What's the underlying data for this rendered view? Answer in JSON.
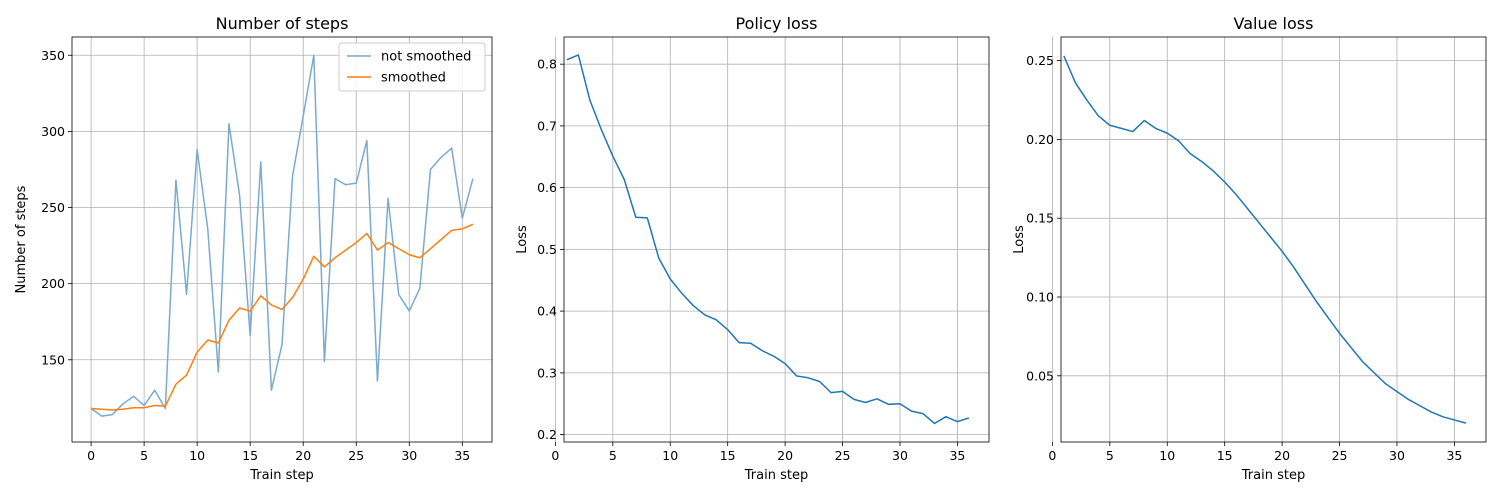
{
  "chart_data": [
    {
      "type": "line",
      "title": "Number of steps",
      "xlabel": "Train step",
      "ylabel": "Number of steps",
      "xlim": [
        -1.8,
        37.8
      ],
      "ylim": [
        96,
        362
      ],
      "xticks": [
        0,
        5,
        10,
        15,
        20,
        25,
        30,
        35
      ],
      "yticks": [
        150,
        200,
        250,
        300,
        350
      ],
      "grid": true,
      "legend": "top-right",
      "series": [
        {
          "name": "not smoothed",
          "color": "#7aaad0",
          "x": [
            0,
            1,
            2,
            3,
            4,
            5,
            6,
            7,
            8,
            9,
            10,
            11,
            12,
            13,
            14,
            15,
            16,
            17,
            18,
            19,
            20,
            21,
            22,
            23,
            24,
            25,
            26,
            27,
            28,
            29,
            30,
            31,
            32,
            33,
            34,
            35,
            36
          ],
          "values": [
            118,
            113,
            114,
            121,
            126,
            120,
            130,
            118,
            268,
            193,
            288,
            236,
            142,
            305,
            258,
            166,
            280,
            130,
            160,
            271,
            310,
            350,
            149,
            269,
            265,
            266,
            294,
            136,
            256,
            193,
            182,
            197,
            275,
            283,
            289,
            243,
            269
          ]
        },
        {
          "name": "smoothed",
          "color": "#ff7f0e",
          "x": [
            0,
            1,
            2,
            3,
            4,
            5,
            6,
            7,
            8,
            9,
            10,
            11,
            12,
            13,
            14,
            15,
            16,
            17,
            18,
            19,
            20,
            21,
            22,
            23,
            24,
            25,
            26,
            27,
            28,
            29,
            30,
            31,
            32,
            33,
            34,
            35,
            36
          ],
          "values": [
            118,
            117.5,
            117,
            117.5,
            118.5,
            118.5,
            120,
            119.5,
            134,
            140,
            155,
            163,
            161,
            176,
            184,
            182,
            192,
            186,
            183,
            191,
            203,
            218,
            211,
            217,
            222,
            227,
            233,
            222,
            227,
            223,
            219,
            217,
            223,
            229,
            235,
            236,
            239
          ]
        }
      ]
    },
    {
      "type": "line",
      "title": "Policy loss",
      "xlabel": "Train step",
      "ylabel": "Loss",
      "xlim": [
        0.75,
        37.75
      ],
      "ylim": [
        0.188,
        0.844
      ],
      "xticks": [
        0,
        5,
        10,
        15,
        20,
        25,
        30,
        35
      ],
      "yticks": [
        0.2,
        0.3,
        0.4,
        0.5,
        0.6,
        0.7,
        0.8
      ],
      "grid": true,
      "series": [
        {
          "color": "#1f77b4",
          "x": [
            1,
            2,
            3,
            4,
            5,
            6,
            7,
            8,
            9,
            10,
            11,
            12,
            13,
            14,
            15,
            16,
            17,
            18,
            19,
            20,
            21,
            22,
            23,
            24,
            25,
            26,
            27,
            28,
            29,
            30,
            31,
            32,
            33,
            34,
            35,
            36
          ],
          "values": [
            0.807,
            0.815,
            0.742,
            0.694,
            0.651,
            0.613,
            0.552,
            0.551,
            0.486,
            0.452,
            0.429,
            0.409,
            0.394,
            0.386,
            0.37,
            0.349,
            0.348,
            0.336,
            0.327,
            0.315,
            0.295,
            0.292,
            0.286,
            0.268,
            0.27,
            0.257,
            0.252,
            0.258,
            0.249,
            0.25,
            0.238,
            0.234,
            0.218,
            0.229,
            0.221,
            0.227
          ]
        }
      ]
    },
    {
      "type": "line",
      "title": "Value loss",
      "xlabel": "Train step",
      "ylabel": "Loss",
      "xlim": [
        0.75,
        37.75
      ],
      "ylim": [
        0.008,
        0.265
      ],
      "xticks": [
        0,
        5,
        10,
        15,
        20,
        25,
        30,
        35
      ],
      "yticks": [
        0.05,
        0.1,
        0.15,
        0.2,
        0.25
      ],
      "grid": true,
      "series": [
        {
          "color": "#1f77b4",
          "x": [
            1,
            2,
            3,
            4,
            5,
            6,
            7,
            8,
            9,
            10,
            11,
            12,
            13,
            14,
            15,
            16,
            17,
            18,
            19,
            20,
            21,
            22,
            23,
            24,
            25,
            26,
            27,
            28,
            29,
            30,
            31,
            32,
            33,
            34,
            35,
            36
          ],
          "values": [
            0.253,
            0.236,
            0.225,
            0.215,
            0.209,
            0.207,
            0.205,
            0.212,
            0.207,
            0.204,
            0.199,
            0.191,
            0.186,
            0.18,
            0.173,
            0.165,
            0.156,
            0.147,
            0.138,
            0.129,
            0.119,
            0.108,
            0.097,
            0.087,
            0.077,
            0.068,
            0.059,
            0.052,
            0.045,
            0.04,
            0.035,
            0.031,
            0.027,
            0.024,
            0.022,
            0.02
          ]
        }
      ]
    }
  ]
}
